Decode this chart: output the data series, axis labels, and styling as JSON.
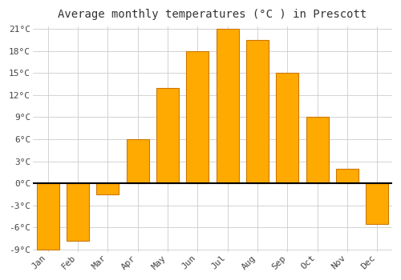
{
  "title": "Average monthly temperatures (°C ) in Prescott",
  "months": [
    "Jan",
    "Feb",
    "Mar",
    "Apr",
    "May",
    "Jun",
    "Jul",
    "Aug",
    "Sep",
    "Oct",
    "Nov",
    "Dec"
  ],
  "values": [
    -9,
    -7.8,
    -1.5,
    6,
    13,
    18,
    21,
    19.5,
    15,
    9,
    2,
    -5.5
  ],
  "bar_color": "#FFAA00",
  "bar_edge_color": "#CC7700",
  "background_color": "#FFFFFF",
  "plot_bg_color": "#FFFFFF",
  "grid_color": "#CCCCCC",
  "ylim_min": -9,
  "ylim_max": 21,
  "yticks": [
    -9,
    -6,
    -3,
    0,
    3,
    6,
    9,
    12,
    15,
    18,
    21
  ],
  "ytick_labels": [
    "-9°C",
    "-6°C",
    "-3°C",
    "0°C",
    "3°C",
    "6°C",
    "9°C",
    "12°C",
    "15°C",
    "18°C",
    "21°C"
  ],
  "title_fontsize": 10,
  "tick_fontsize": 8,
  "figsize": [
    5.0,
    3.5
  ],
  "dpi": 100,
  "bar_width": 0.75
}
